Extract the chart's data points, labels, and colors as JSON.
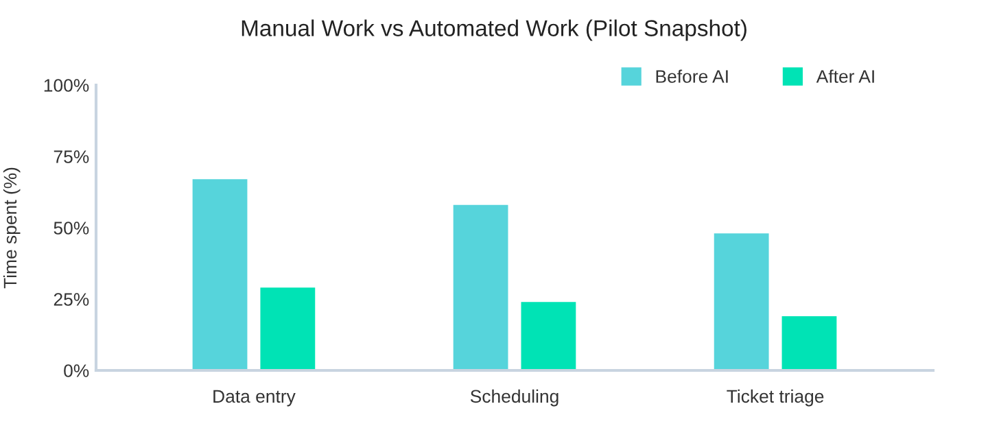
{
  "chart_data": {
    "type": "bar",
    "title": "Manual Work vs Automated Work (Pilot Snapshot)",
    "ylabel": "Time spent (%)",
    "categories": [
      "Data entry",
      "Scheduling",
      "Ticket triage"
    ],
    "series": [
      {
        "name": "Before AI",
        "color": "#56d4db",
        "values": [
          67,
          58,
          48
        ]
      },
      {
        "name": "After AI",
        "color": "#00e3b5",
        "values": [
          29,
          24,
          19
        ]
      }
    ],
    "ylim": [
      0,
      100
    ],
    "yticks": [
      {
        "value": 0,
        "label": "0%"
      },
      {
        "value": 25,
        "label": "25%"
      },
      {
        "value": 50,
        "label": "50%"
      },
      {
        "value": 75,
        "label": "75%"
      },
      {
        "value": 100,
        "label": "100%"
      }
    ],
    "grid": false,
    "legend": "top right"
  }
}
